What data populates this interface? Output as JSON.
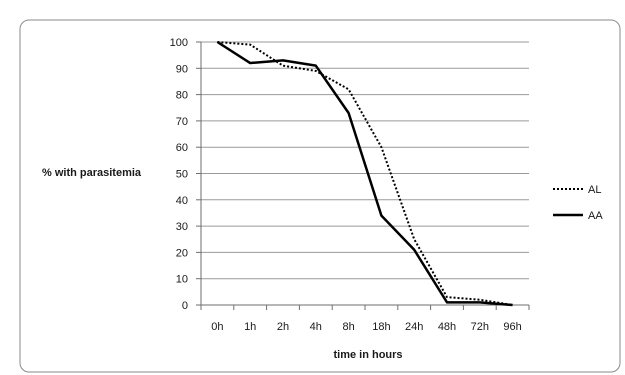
{
  "chart_data": {
    "type": "line",
    "title": "",
    "xlabel": "time in hours",
    "ylabel": "% with parasitemia",
    "categories": [
      "0h",
      "1h",
      "2h",
      "4h",
      "8h",
      "18h",
      "24h",
      "48h",
      "72h",
      "96h"
    ],
    "ylim": [
      0,
      100
    ],
    "yticks": [
      0,
      10,
      20,
      30,
      40,
      50,
      60,
      70,
      80,
      90,
      100
    ],
    "grid": true,
    "legend_position": "right",
    "series": [
      {
        "name": "AL",
        "style": "dotted",
        "color": "#000000",
        "values": [
          100,
          99,
          91,
          89,
          82,
          60,
          25,
          3,
          2,
          0
        ]
      },
      {
        "name": "AA",
        "style": "solid",
        "color": "#000000",
        "values": [
          100,
          92,
          93,
          91,
          73,
          34,
          21,
          1,
          1,
          0
        ]
      }
    ]
  }
}
